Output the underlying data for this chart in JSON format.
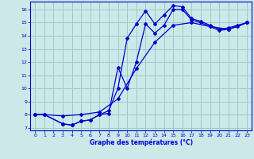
{
  "xlabel": "Graphe des températures (°C)",
  "bg_color": "#cce8e8",
  "line_color": "#0000cc",
  "grid_color": "#99cccc",
  "xlim": [
    -0.5,
    23.5
  ],
  "ylim": [
    6.8,
    16.6
  ],
  "xticks": [
    0,
    1,
    2,
    3,
    4,
    5,
    6,
    7,
    8,
    9,
    10,
    11,
    12,
    13,
    14,
    15,
    16,
    17,
    18,
    19,
    20,
    21,
    22,
    23
  ],
  "yticks": [
    7,
    8,
    9,
    10,
    11,
    12,
    13,
    14,
    15,
    16
  ],
  "series": [
    {
      "x": [
        0,
        1,
        3,
        5,
        7,
        9,
        11,
        13,
        15,
        17,
        19,
        21,
        23
      ],
      "y": [
        8,
        8,
        7.9,
        8.0,
        8.2,
        9.2,
        11.5,
        13.5,
        14.8,
        15.0,
        14.7,
        14.5,
        15.0
      ]
    },
    {
      "x": [
        0,
        1,
        3,
        4,
        5,
        6,
        7,
        8,
        9,
        10,
        11,
        12,
        13,
        14,
        15,
        16,
        17,
        18,
        19,
        20,
        21,
        22,
        23
      ],
      "y": [
        8,
        8,
        7.3,
        7.2,
        7.5,
        7.6,
        8.0,
        8.1,
        11.6,
        10.0,
        12.0,
        14.9,
        14.2,
        14.8,
        16.0,
        16.0,
        15.2,
        15.0,
        14.7,
        14.4,
        14.5,
        14.7,
        15.0
      ]
    },
    {
      "x": [
        0,
        1,
        3,
        4,
        5,
        6,
        7,
        8,
        9,
        10,
        11,
        12,
        13,
        14,
        15,
        16,
        17,
        18,
        19,
        20,
        21,
        22,
        23
      ],
      "y": [
        8,
        8,
        7.3,
        7.2,
        7.5,
        7.6,
        8.0,
        8.3,
        10.0,
        13.8,
        14.9,
        15.9,
        14.9,
        15.6,
        16.3,
        16.2,
        15.3,
        15.1,
        14.8,
        14.5,
        14.6,
        14.8,
        15.0
      ]
    }
  ]
}
